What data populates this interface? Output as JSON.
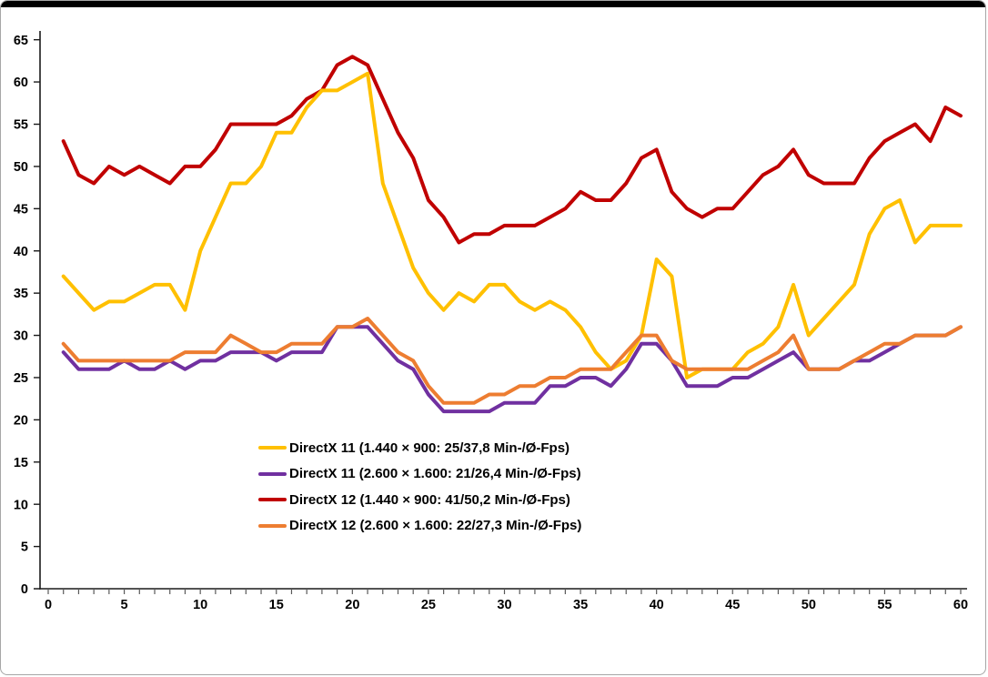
{
  "chart_data": {
    "type": "line",
    "title": "",
    "xlabel": "",
    "ylabel": "",
    "x_range": [
      0,
      60
    ],
    "y_range": [
      0,
      65
    ],
    "x_tick_labels": [
      0,
      5,
      10,
      15,
      20,
      25,
      30,
      35,
      40,
      45,
      50,
      55,
      60
    ],
    "x_minor_tick_step": 1,
    "y_tick_labels": [
      0,
      5,
      10,
      15,
      20,
      25,
      30,
      35,
      40,
      45,
      50,
      55,
      60,
      65
    ],
    "grid": false,
    "legend_position": "inside-left-middle",
    "axis_color": "#1a1a1a",
    "tick_color": "#595959",
    "x": [
      1,
      2,
      3,
      4,
      5,
      6,
      7,
      8,
      9,
      10,
      11,
      12,
      13,
      14,
      15,
      16,
      17,
      18,
      19,
      20,
      21,
      22,
      23,
      24,
      25,
      26,
      27,
      28,
      29,
      30,
      31,
      32,
      33,
      34,
      35,
      36,
      37,
      38,
      39,
      40,
      41,
      42,
      43,
      44,
      45,
      46,
      47,
      48,
      49,
      50,
      51,
      52,
      53,
      54,
      55,
      56,
      57,
      58,
      59,
      60
    ],
    "series": [
      {
        "name": "DirectX 11 (1.440 × 900: 25/37,8 Min-/Ø-Fps)",
        "color": "#FFC000",
        "values": [
          37,
          35,
          33,
          34,
          34,
          35,
          36,
          36,
          33,
          40,
          44,
          48,
          48,
          50,
          54,
          54,
          57,
          59,
          59,
          60,
          61,
          48,
          43,
          38,
          35,
          33,
          35,
          34,
          36,
          36,
          34,
          33,
          34,
          33,
          31,
          28,
          26,
          27,
          30,
          39,
          37,
          25,
          26,
          26,
          26,
          28,
          29,
          31,
          36,
          30,
          32,
          34,
          36,
          42,
          45,
          46,
          41,
          43,
          43,
          43
        ]
      },
      {
        "name": "DirectX 11 (2.600 × 1.600: 21/26,4 Min-/Ø-Fps)",
        "color": "#7030A0",
        "values": [
          28,
          26,
          26,
          26,
          27,
          26,
          26,
          27,
          26,
          27,
          27,
          28,
          28,
          28,
          27,
          28,
          28,
          28,
          31,
          31,
          31,
          29,
          27,
          26,
          23,
          21,
          21,
          21,
          21,
          22,
          22,
          22,
          24,
          24,
          25,
          25,
          24,
          26,
          29,
          29,
          27,
          24,
          24,
          24,
          25,
          25,
          26,
          27,
          28,
          26,
          26,
          26,
          27,
          27,
          28,
          29,
          30,
          30,
          30,
          31
        ]
      },
      {
        "name": "DirectX 12 (1.440 × 900: 41/50,2 Min-/Ø-Fps)",
        "color": "#C00000",
        "values": [
          53,
          49,
          48,
          50,
          49,
          50,
          49,
          48,
          50,
          50,
          52,
          55,
          55,
          55,
          55,
          56,
          58,
          59,
          62,
          63,
          62,
          58,
          54,
          51,
          46,
          44,
          41,
          42,
          42,
          43,
          43,
          43,
          44,
          45,
          47,
          46,
          46,
          48,
          51,
          52,
          47,
          45,
          44,
          45,
          45,
          47,
          49,
          50,
          52,
          49,
          48,
          48,
          48,
          51,
          53,
          54,
          55,
          53,
          57,
          56
        ]
      },
      {
        "name": "DirectX 12 (2.600 × 1.600: 22/27,3 Min-/Ø-Fps)",
        "color": "#ED7D31",
        "values": [
          29,
          27,
          27,
          27,
          27,
          27,
          27,
          27,
          28,
          28,
          28,
          30,
          29,
          28,
          28,
          29,
          29,
          29,
          31,
          31,
          32,
          30,
          28,
          27,
          24,
          22,
          22,
          22,
          23,
          23,
          24,
          24,
          25,
          25,
          26,
          26,
          26,
          28,
          30,
          30,
          27,
          26,
          26,
          26,
          26,
          26,
          27,
          28,
          30,
          26,
          26,
          26,
          27,
          28,
          29,
          29,
          30,
          30,
          30,
          31
        ]
      }
    ],
    "draw_order": [
      "DirectX 12 (1.440 × 900)",
      "DirectX 11 (1.440 × 900)",
      "DirectX 11 (2.600 × 1.600)",
      "DirectX 12 (2.600 × 1.600)"
    ]
  }
}
